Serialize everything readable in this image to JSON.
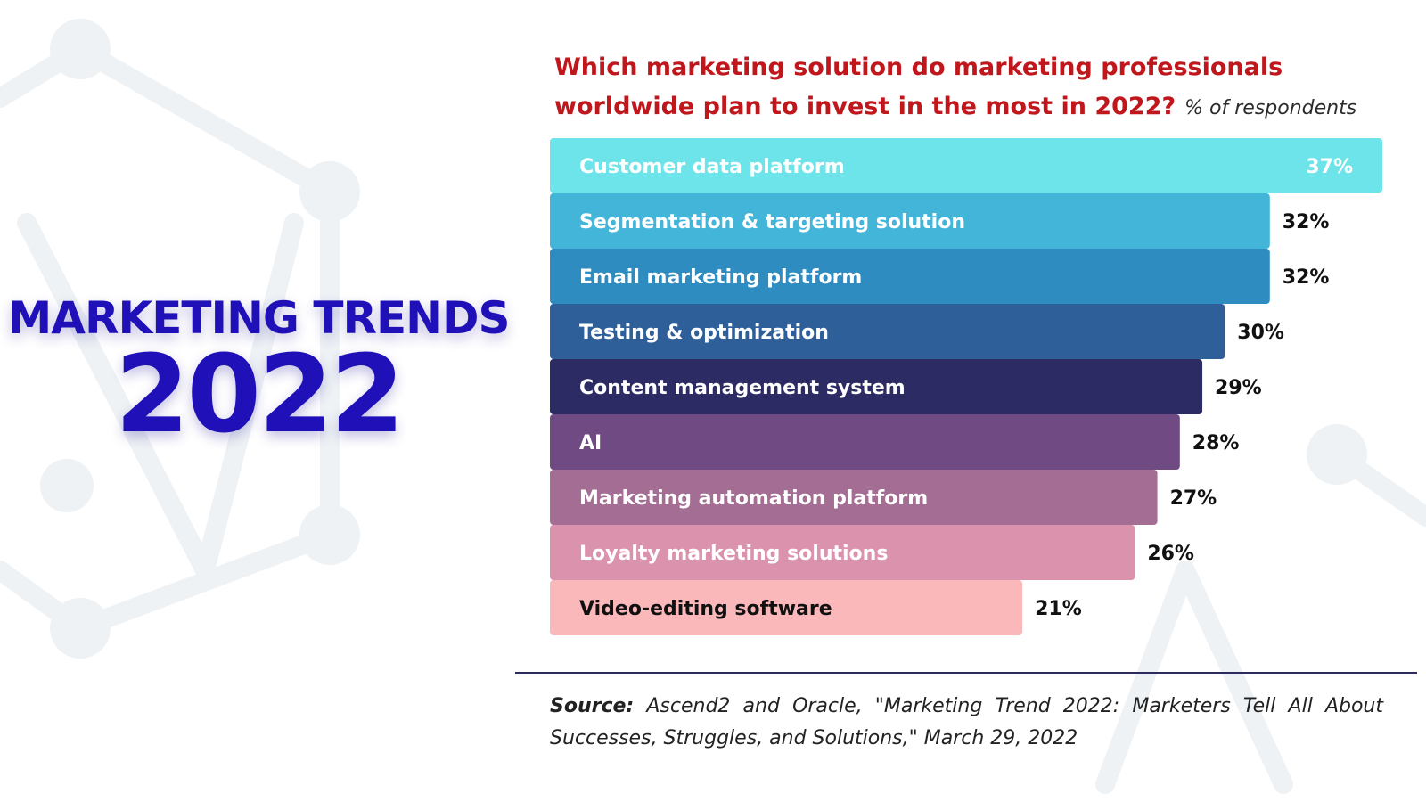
{
  "headline": {
    "line1": "MARKETING TRENDS",
    "line2": "2022"
  },
  "chart_data": {
    "type": "bar",
    "orientation": "horizontal",
    "title": "Which marketing solution do marketing professionals worldwide plan to invest in the most in 2022?",
    "unit_label": "% of respondents",
    "categories": [
      "Customer data platform",
      "Segmentation & targeting solution",
      "Email marketing platform",
      "Testing & optimization",
      "Content management system",
      "AI",
      "Marketing automation platform",
      "Loyalty marketing solutions",
      "Video-editing software"
    ],
    "values": [
      37,
      32,
      32,
      30,
      29,
      28,
      27,
      26,
      21
    ],
    "value_labels": [
      "37%",
      "32%",
      "32%",
      "30%",
      "29%",
      "28%",
      "27%",
      "26%",
      "21%"
    ],
    "colors": [
      "#6de4ea",
      "#43b5d8",
      "#2e8cc0",
      "#2e5f98",
      "#2c2b63",
      "#6f4a83",
      "#a46d93",
      "#da92ad",
      "#fbb8bb"
    ],
    "label_colors": [
      "#ffffff",
      "#ffffff",
      "#ffffff",
      "#ffffff",
      "#ffffff",
      "#ffffff",
      "#ffffff",
      "#ffffff",
      "#111111"
    ],
    "xlim": [
      0,
      37
    ],
    "grid": false,
    "legend": "none"
  },
  "source": {
    "label": "Source:",
    "text": " Ascend2 and Oracle, \"Marketing Trend 2022: Marketers Tell All About Successes, Struggles, and Solutions,\" March 29, 2022"
  }
}
